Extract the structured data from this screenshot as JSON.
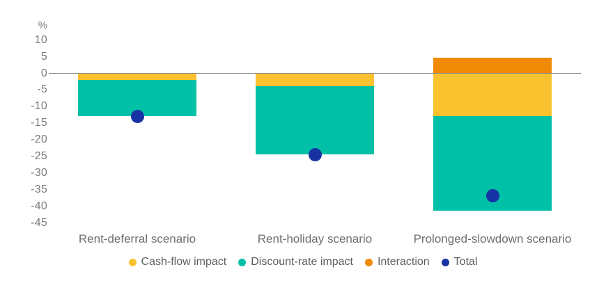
{
  "chart_data": {
    "type": "bar",
    "stacked": true,
    "title": "",
    "xlabel": "",
    "ylabel": "%",
    "ylim": [
      -45,
      10
    ],
    "yticks": [
      10,
      5,
      0,
      -5,
      -10,
      -15,
      -20,
      -25,
      -30,
      -35,
      -40,
      -45
    ],
    "zero_line": true,
    "grid": false,
    "legend_position": "bottom",
    "categories": [
      "Rent-deferral scenario",
      "Rent-holiday scenario",
      "Prolonged-slowdown scenario"
    ],
    "series": [
      {
        "name": "Cash-flow impact",
        "color": "#F9C22E",
        "values": [
          -2,
          -4,
          -13
        ]
      },
      {
        "name": "Discount-rate impact",
        "color": "#00C0A7",
        "values": [
          -11,
          -20.5,
          -28.5
        ]
      },
      {
        "name": "Interaction",
        "color": "#F18A06",
        "values": [
          0,
          0,
          4.5
        ]
      }
    ],
    "totals": {
      "name": "Total",
      "color": "#1733A3",
      "marker": "dot",
      "values": [
        -13,
        -24.5,
        -37
      ]
    }
  }
}
